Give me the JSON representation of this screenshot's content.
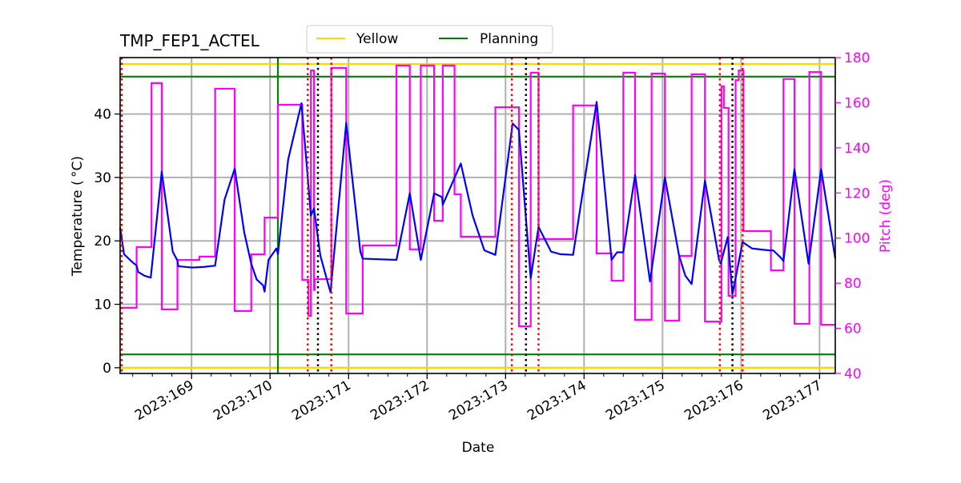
{
  "chart_data": {
    "type": "line",
    "title": "TMP_FEP1_ACTEL",
    "xlabel": "Date",
    "ylabel": "Temperature ($^\\circ$C)",
    "ylabel_display": "Temperature ( °C)",
    "y2label": "Pitch (deg)",
    "xlim": [
      168.09,
      177.2
    ],
    "ylim": [
      -0.9,
      48.9
    ],
    "y2lim": [
      40,
      180
    ],
    "grid": true,
    "x_ticks": [
      169,
      170,
      171,
      172,
      173,
      174,
      175,
      176,
      177
    ],
    "x_tick_labels": [
      "2023:169",
      "2023:170",
      "2023:171",
      "2023:172",
      "2023:173",
      "2023:174",
      "2023:175",
      "2023:176",
      "2023:177"
    ],
    "y_ticks": [
      0,
      10,
      20,
      30,
      40
    ],
    "y2_ticks": [
      40,
      60,
      80,
      100,
      120,
      140,
      160,
      180
    ],
    "legend": {
      "placement": "top-center",
      "entries": [
        {
          "label": "Yellow",
          "color": "#ffd700"
        },
        {
          "label": "Planning",
          "color": "#008000"
        }
      ]
    },
    "limit_lines": [
      {
        "name": "Yellow",
        "color": "#ffd700",
        "values": [
          47.9,
          0.0
        ]
      },
      {
        "name": "Planning",
        "color": "#008000",
        "values": [
          45.9,
          2.1
        ]
      }
    ],
    "planning_vertical": {
      "color": "#008000",
      "x": 170.1
    },
    "red_vlines": {
      "color": "#ff0000",
      "x": [
        168.11,
        170.48,
        170.78,
        173.08,
        173.42,
        175.73,
        176.02
      ]
    },
    "black_vlines": {
      "color": "#000000",
      "x": [
        170.61,
        173.26,
        175.89
      ]
    },
    "temperature": {
      "color": "#0000ff",
      "points": [
        [
          168.09,
          22.1
        ],
        [
          168.14,
          17.9
        ],
        [
          168.25,
          16.6
        ],
        [
          168.3,
          16.1
        ],
        [
          168.32,
          15.1
        ],
        [
          168.4,
          14.5
        ],
        [
          168.48,
          14.2
        ],
        [
          168.62,
          30.9
        ],
        [
          168.76,
          18.3
        ],
        [
          168.82,
          16.9
        ],
        [
          168.83,
          16.0
        ],
        [
          169.01,
          15.8
        ],
        [
          169.16,
          15.9
        ],
        [
          169.3,
          16.1
        ],
        [
          169.42,
          26.5
        ],
        [
          169.55,
          31.4
        ],
        [
          169.67,
          21.4
        ],
        [
          169.76,
          16.4
        ],
        [
          169.83,
          13.9
        ],
        [
          169.91,
          13.0
        ],
        [
          169.93,
          12.0
        ],
        [
          169.98,
          17.0
        ],
        [
          170.08,
          18.8
        ],
        [
          170.1,
          17.9
        ],
        [
          170.23,
          32.8
        ],
        [
          170.4,
          41.7
        ],
        [
          170.47,
          31.5
        ],
        [
          170.52,
          24.0
        ],
        [
          170.56,
          25.1
        ],
        [
          170.64,
          17.7
        ],
        [
          170.74,
          13.2
        ],
        [
          170.77,
          11.9
        ],
        [
          170.97,
          38.6
        ],
        [
          171.15,
          18.3
        ],
        [
          171.18,
          17.2
        ],
        [
          171.61,
          17.0
        ],
        [
          171.78,
          27.5
        ],
        [
          171.92,
          17.0
        ],
        [
          172.09,
          27.5
        ],
        [
          172.19,
          26.9
        ],
        [
          172.2,
          25.7
        ],
        [
          172.43,
          32.2
        ],
        [
          172.58,
          24.0
        ],
        [
          172.73,
          18.5
        ],
        [
          172.87,
          17.8
        ],
        [
          173.09,
          38.5
        ],
        [
          173.17,
          37.5
        ],
        [
          173.32,
          14.1
        ],
        [
          173.42,
          22.2
        ],
        [
          173.58,
          18.3
        ],
        [
          173.7,
          17.9
        ],
        [
          173.86,
          17.8
        ],
        [
          174.16,
          41.9
        ],
        [
          174.35,
          17.0
        ],
        [
          174.42,
          18.2
        ],
        [
          174.5,
          18.2
        ],
        [
          174.65,
          30.4
        ],
        [
          174.84,
          13.6
        ],
        [
          175.03,
          30.0
        ],
        [
          175.21,
          17.7
        ],
        [
          175.29,
          14.5
        ],
        [
          175.37,
          13.2
        ],
        [
          175.54,
          29.5
        ],
        [
          175.72,
          17.0
        ],
        [
          175.74,
          16.4
        ],
        [
          175.83,
          20.6
        ],
        [
          175.89,
          11.6
        ],
        [
          176.02,
          19.8
        ],
        [
          176.14,
          18.8
        ],
        [
          176.36,
          18.5
        ],
        [
          176.41,
          18.5
        ],
        [
          176.51,
          17.3
        ],
        [
          176.54,
          16.8
        ],
        [
          176.68,
          31.3
        ],
        [
          176.86,
          16.4
        ],
        [
          177.02,
          31.3
        ],
        [
          177.2,
          17.2
        ]
      ]
    },
    "pitch": {
      "color": "#ff00ff",
      "steps": [
        [
          168.09,
          69.1
        ],
        [
          168.3,
          96.0
        ],
        [
          168.49,
          168.7
        ],
        [
          168.62,
          68.4
        ],
        [
          168.82,
          90.3
        ],
        [
          169.1,
          91.8
        ],
        [
          169.3,
          166.2
        ],
        [
          169.55,
          67.7
        ],
        [
          169.76,
          92.8
        ],
        [
          169.93,
          109.1
        ],
        [
          170.1,
          159.1
        ],
        [
          170.41,
          81.5
        ],
        [
          170.49,
          65.5
        ],
        [
          170.52,
          174.3
        ],
        [
          170.56,
          77.0
        ],
        [
          170.57,
          81.8
        ],
        [
          170.78,
          175.4
        ],
        [
          170.97,
          66.6
        ],
        [
          171.18,
          96.7
        ],
        [
          171.61,
          176.5
        ],
        [
          171.78,
          95.0
        ],
        [
          171.92,
          176.5
        ],
        [
          172.09,
          107.7
        ],
        [
          172.2,
          176.5
        ],
        [
          172.35,
          119.4
        ],
        [
          172.43,
          100.6
        ],
        [
          172.87,
          158.0
        ],
        [
          173.17,
          60.9
        ],
        [
          173.32,
          173.3
        ],
        [
          173.42,
          99.6
        ],
        [
          173.86,
          158.8
        ],
        [
          174.16,
          93.2
        ],
        [
          174.35,
          81.1
        ],
        [
          174.5,
          173.3
        ],
        [
          174.65,
          63.8
        ],
        [
          174.86,
          172.9
        ],
        [
          175.03,
          63.4
        ],
        [
          175.21,
          92.1
        ],
        [
          175.37,
          172.6
        ],
        [
          175.54,
          63.0
        ],
        [
          175.75,
          167.3
        ],
        [
          175.78,
          157.7
        ],
        [
          175.84,
          74.4
        ],
        [
          175.93,
          170.0
        ],
        [
          175.97,
          174.3
        ],
        [
          176.03,
          103.1
        ],
        [
          176.38,
          85.7
        ],
        [
          176.54,
          170.5
        ],
        [
          176.68,
          62.0
        ],
        [
          176.87,
          173.6
        ],
        [
          177.02,
          61.6
        ]
      ],
      "end": 177.2
    }
  }
}
